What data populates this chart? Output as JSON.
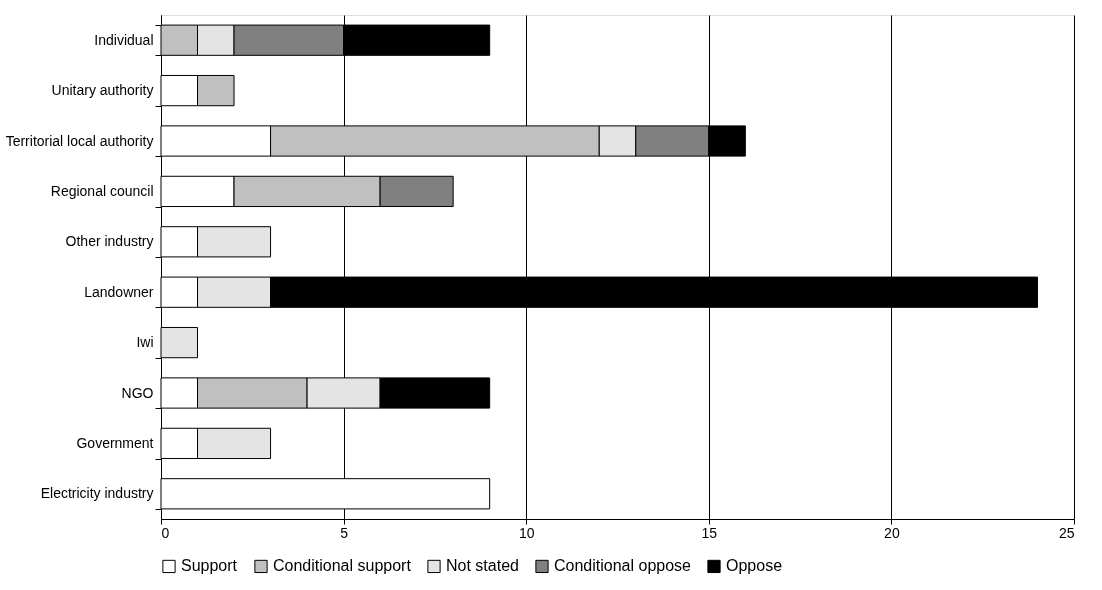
{
  "chart_data": {
    "type": "bar",
    "orientation": "horizontal",
    "stacked": true,
    "categories": [
      "Individual",
      "Unitary authority",
      "Territorial local authority",
      "Regional council",
      "Other industry",
      "Landowner",
      "Iwi",
      "NGO",
      "Government",
      "Electricity industry"
    ],
    "series": [
      {
        "name": "Support",
        "color": "#ffffff",
        "values": [
          null,
          1,
          3,
          2,
          1,
          1,
          null,
          1,
          1,
          9
        ]
      },
      {
        "name": "Conditional support",
        "color": "#c0c0c0",
        "values": [
          1,
          1,
          9,
          4,
          null,
          null,
          null,
          3,
          null,
          null
        ]
      },
      {
        "name": "Not stated",
        "color": "#e4e4e4",
        "values": [
          1,
          null,
          1,
          null,
          2,
          2,
          1,
          2,
          2,
          null
        ]
      },
      {
        "name": "Conditional oppose",
        "color": "#808080",
        "values": [
          3,
          null,
          2,
          2,
          null,
          null,
          null,
          null,
          null,
          null
        ]
      },
      {
        "name": "Oppose",
        "color": "#000000",
        "values": [
          4,
          null,
          1,
          null,
          null,
          21,
          null,
          3,
          null,
          null
        ]
      }
    ],
    "xlim": [
      0,
      25
    ],
    "xticks": [
      0,
      5,
      10,
      15,
      20,
      25
    ],
    "grid": "x",
    "legend": "bottom"
  }
}
